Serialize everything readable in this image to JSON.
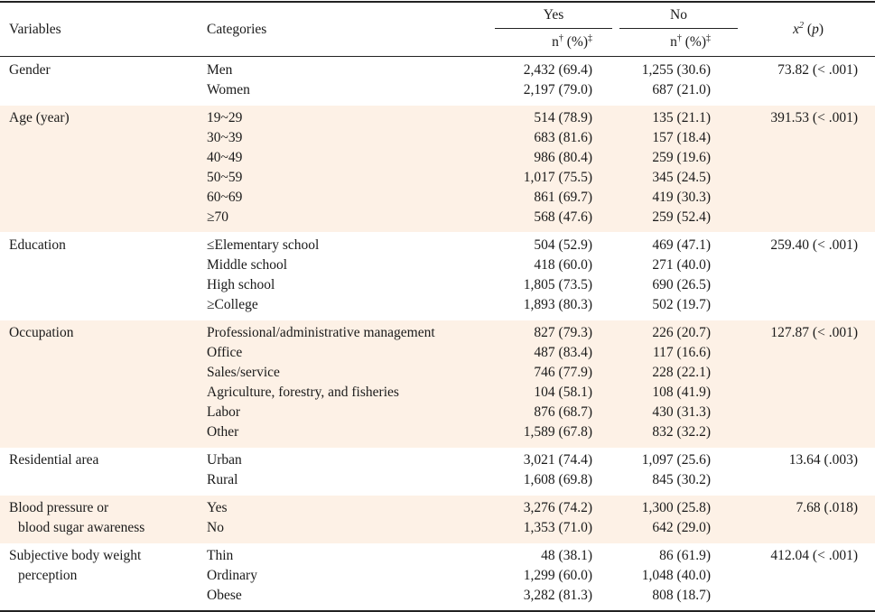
{
  "header": {
    "variables": "Variables",
    "categories": "Categories",
    "yes": "Yes",
    "no": "No",
    "yes_sub": "n† (%)‡",
    "no_sub": "n† (%)‡",
    "chi": "x² (p)"
  },
  "groups": [
    {
      "variable": [
        "Gender"
      ],
      "chi": "73.82 (< .001)",
      "rows": [
        {
          "category": "Men",
          "yes": "2,432 (69.4)",
          "no": "1,255 (30.6)"
        },
        {
          "category": "Women",
          "yes": "2,197 (79.0)",
          "no": "687 (21.0)"
        }
      ]
    },
    {
      "variable": [
        "Age (year)"
      ],
      "chi": "391.53 (< .001)",
      "rows": [
        {
          "category": "19~29",
          "yes": "514 (78.9)",
          "no": "135 (21.1)"
        },
        {
          "category": "30~39",
          "yes": "683 (81.6)",
          "no": "157 (18.4)"
        },
        {
          "category": "40~49",
          "yes": "986 (80.4)",
          "no": "259 (19.6)"
        },
        {
          "category": "50~59",
          "yes": "1,017 (75.5)",
          "no": "345 (24.5)"
        },
        {
          "category": "60~69",
          "yes": "861 (69.7)",
          "no": "419 (30.3)"
        },
        {
          "category": "≥70",
          "yes": "568 (47.6)",
          "no": "259 (52.4)"
        }
      ]
    },
    {
      "variable": [
        "Education"
      ],
      "chi": "259.40 (< .001)",
      "rows": [
        {
          "category": "≤Elementary school",
          "yes": "504 (52.9)",
          "no": "469 (47.1)"
        },
        {
          "category": "Middle school",
          "yes": "418 (60.0)",
          "no": "271 (40.0)"
        },
        {
          "category": "High school",
          "yes": "1,805 (73.5)",
          "no": "690 (26.5)"
        },
        {
          "category": "≥College",
          "yes": "1,893 (80.3)",
          "no": "502 (19.7)"
        }
      ]
    },
    {
      "variable": [
        "Occupation"
      ],
      "chi": "127.87 (< .001)",
      "rows": [
        {
          "category": "Professional/administrative management",
          "yes": "827 (79.3)",
          "no": "226 (20.7)"
        },
        {
          "category": "Office",
          "yes": "487 (83.4)",
          "no": "117 (16.6)"
        },
        {
          "category": "Sales/service",
          "yes": "746 (77.9)",
          "no": "228 (22.1)"
        },
        {
          "category": "Agriculture, forestry, and fisheries",
          "yes": "104 (58.1)",
          "no": "108 (41.9)"
        },
        {
          "category": "Labor",
          "yes": "876 (68.7)",
          "no": "430 (31.3)"
        },
        {
          "category": "Other",
          "yes": "1,589 (67.8)",
          "no": "832 (32.2)"
        }
      ]
    },
    {
      "variable": [
        "Residential area"
      ],
      "chi": "13.64 (.003)",
      "rows": [
        {
          "category": "Urban",
          "yes": "3,021 (74.4)",
          "no": "1,097 (25.6)"
        },
        {
          "category": "Rural",
          "yes": "1,608 (69.8)",
          "no": "845 (30.2)"
        }
      ]
    },
    {
      "variable": [
        "Blood pressure or",
        "blood sugar awareness"
      ],
      "chi": "7.68 (.018)",
      "rows": [
        {
          "category": "Yes",
          "yes": "3,276 (74.2)",
          "no": "1,300 (25.8)"
        },
        {
          "category": "No",
          "yes": "1,353 (71.0)",
          "no": "642 (29.0)"
        }
      ]
    },
    {
      "variable": [
        "Subjective body weight",
        "perception"
      ],
      "chi": "412.04 (< .001)",
      "rows": [
        {
          "category": "Thin",
          "yes": "48 (38.1)",
          "no": "86 (61.9)"
        },
        {
          "category": "Ordinary",
          "yes": "1,299 (60.0)",
          "no": "1,048 (40.0)"
        },
        {
          "category": "Obese",
          "yes": "3,282 (81.3)",
          "no": "808 (18.7)"
        }
      ]
    }
  ],
  "colors": {
    "band": "#fdf1e6",
    "rule": "#222222"
  }
}
